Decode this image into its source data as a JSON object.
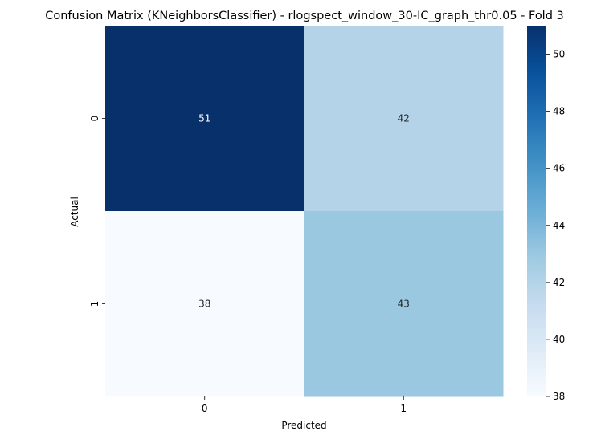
{
  "chart_data": {
    "type": "heatmap",
    "title": "Confusion Matrix (KNeighborsClassifier) - rlogspect_window_30-IC_graph_thr0.05 - Fold 3",
    "xlabel": "Predicted",
    "ylabel": "Actual",
    "x_categories": [
      "0",
      "1"
    ],
    "y_categories": [
      "0",
      "1"
    ],
    "values": [
      [
        51,
        42
      ],
      [
        38,
        43
      ]
    ],
    "cell_labels": [
      [
        "51",
        "42"
      ],
      [
        "38",
        "43"
      ]
    ],
    "colormap": "Blues",
    "color_range": [
      38,
      51
    ],
    "colorbar_ticks": [
      "38",
      "40",
      "42",
      "44",
      "46",
      "48",
      "50"
    ]
  }
}
